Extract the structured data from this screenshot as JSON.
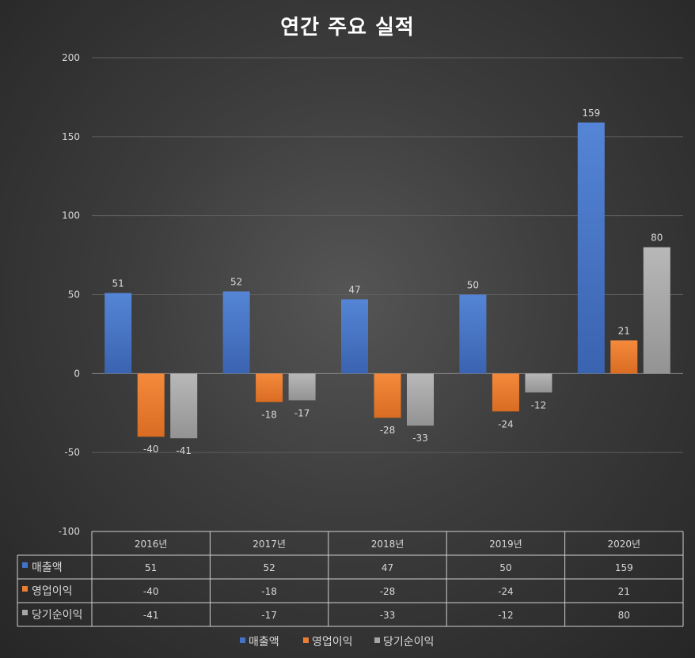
{
  "chart_data": {
    "type": "bar",
    "title": "연간 주요 실적",
    "categories": [
      "2016년",
      "2017년",
      "2018년",
      "2019년",
      "2020년"
    ],
    "series": [
      {
        "name": "매출액",
        "values": [
          51,
          52,
          47,
          50,
          159
        ],
        "color": "#4472C4"
      },
      {
        "name": "영업이익",
        "values": [
          -40,
          -18,
          -28,
          -24,
          21
        ],
        "color": "#ED7D31"
      },
      {
        "name": "당기순이익",
        "values": [
          -41,
          -17,
          -33,
          -12,
          80
        ],
        "color": "#A5A5A5"
      }
    ],
    "ylim": [
      -100,
      200
    ],
    "yticks": [
      200,
      150,
      100,
      50,
      0,
      -50,
      -100
    ],
    "grid": true,
    "legend": "bottom",
    "data_table": true
  }
}
